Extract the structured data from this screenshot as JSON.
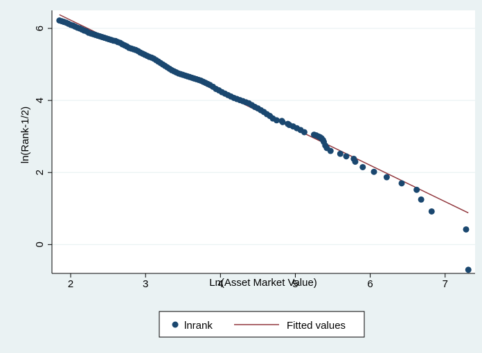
{
  "chart_data": {
    "type": "scatter",
    "title": "",
    "xlabel": "Ln(Asset Market Value)",
    "ylabel": "ln(Rank-1/2)",
    "xlim": [
      1.75,
      7.4
    ],
    "ylim": [
      -0.8,
      6.5
    ],
    "xticks": [
      2,
      3,
      4,
      5,
      6,
      7
    ],
    "yticks": [
      0,
      2,
      4,
      6
    ],
    "grid": "horizontal",
    "legend": "bottom",
    "series": [
      {
        "name": "lnrank",
        "kind": "scatter",
        "color": "#1a476f",
        "x": [
          1.85,
          1.88,
          1.91,
          1.94,
          1.97,
          2.0,
          2.03,
          2.06,
          2.09,
          2.12,
          2.15,
          2.18,
          2.21,
          2.24,
          2.27,
          2.3,
          2.33,
          2.36,
          2.39,
          2.42,
          2.45,
          2.48,
          2.51,
          2.54,
          2.57,
          2.6,
          2.63,
          2.66,
          2.69,
          2.72,
          2.75,
          2.78,
          2.81,
          2.84,
          2.87,
          2.9,
          2.93,
          2.96,
          2.99,
          3.02,
          3.05,
          3.08,
          3.11,
          3.14,
          3.17,
          3.2,
          3.23,
          3.26,
          3.29,
          3.32,
          3.35,
          3.38,
          3.41,
          3.44,
          3.47,
          3.5,
          3.53,
          3.56,
          3.59,
          3.62,
          3.65,
          3.68,
          3.71,
          3.74,
          3.77,
          3.8,
          3.83,
          3.86,
          3.9,
          3.94,
          3.98,
          4.02,
          4.06,
          4.1,
          4.14,
          4.18,
          4.22,
          4.26,
          4.3,
          4.34,
          4.38,
          4.42,
          4.46,
          4.5,
          4.54,
          4.58,
          4.62,
          4.66,
          4.7,
          4.75,
          4.82,
          4.83,
          4.9,
          4.92,
          4.97,
          5.02,
          5.07,
          5.12,
          5.25,
          5.28,
          5.31,
          5.33,
          5.35,
          5.37,
          5.38,
          5.4,
          5.42,
          5.47,
          5.6,
          5.68,
          5.78,
          5.8,
          5.9,
          6.05,
          6.22,
          6.42,
          6.62,
          6.68,
          6.82,
          7.28,
          7.31
        ],
        "y": [
          6.22,
          6.2,
          6.18,
          6.16,
          6.13,
          6.1,
          6.08,
          6.05,
          6.02,
          6.0,
          5.97,
          5.94,
          5.92,
          5.88,
          5.86,
          5.84,
          5.82,
          5.8,
          5.78,
          5.76,
          5.74,
          5.72,
          5.7,
          5.68,
          5.66,
          5.65,
          5.62,
          5.6,
          5.56,
          5.53,
          5.5,
          5.46,
          5.44,
          5.42,
          5.4,
          5.37,
          5.33,
          5.3,
          5.27,
          5.24,
          5.21,
          5.19,
          5.16,
          5.12,
          5.08,
          5.04,
          5.0,
          4.96,
          4.92,
          4.88,
          4.84,
          4.81,
          4.78,
          4.75,
          4.73,
          4.71,
          4.69,
          4.67,
          4.65,
          4.63,
          4.61,
          4.59,
          4.57,
          4.55,
          4.52,
          4.49,
          4.46,
          4.43,
          4.38,
          4.32,
          4.28,
          4.23,
          4.19,
          4.15,
          4.11,
          4.07,
          4.04,
          4.01,
          3.98,
          3.95,
          3.92,
          3.87,
          3.82,
          3.78,
          3.73,
          3.68,
          3.62,
          3.57,
          3.5,
          3.45,
          3.43,
          3.4,
          3.35,
          3.32,
          3.28,
          3.23,
          3.18,
          3.12,
          3.05,
          3.03,
          3.0,
          2.98,
          2.95,
          2.9,
          2.85,
          2.75,
          2.68,
          2.6,
          2.52,
          2.45,
          2.38,
          2.3,
          2.15,
          2.02,
          1.87,
          1.7,
          1.52,
          1.25,
          0.92,
          0.42,
          -0.7
        ]
      },
      {
        "name": "Fitted values",
        "kind": "line",
        "color": "#90353b",
        "x": [
          1.85,
          7.31
        ],
        "y": [
          6.38,
          0.88
        ]
      }
    ]
  }
}
